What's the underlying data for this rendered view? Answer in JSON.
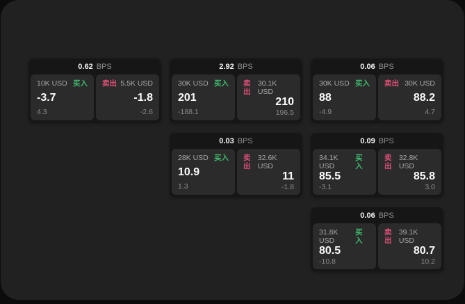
{
  "labels": {
    "bps_unit": "BPS",
    "buy_tag": "买入",
    "sell_tag": "卖出"
  },
  "colors": {
    "buy": "#3fbb6e",
    "sell": "#dd4f76",
    "window_bg": "#212121",
    "card_bg": "#161616",
    "panel_bg": "#2b2b2b"
  },
  "cards": [
    {
      "row": 0,
      "col": 0,
      "bps": "0.62",
      "buy": {
        "size": "10K USD",
        "price": "-3.7",
        "delta": "4.3"
      },
      "sell": {
        "size": "5.5K USD",
        "price": "-1.8",
        "delta": "-2.6"
      }
    },
    {
      "row": 0,
      "col": 1,
      "bps": "2.92",
      "buy": {
        "size": "30K USD",
        "price": "201",
        "delta": "-188.1"
      },
      "sell": {
        "size": "30.1K USD",
        "price": "210",
        "delta": "196.5"
      }
    },
    {
      "row": 0,
      "col": 2,
      "bps": "0.06",
      "buy": {
        "size": "30K USD",
        "price": "88",
        "delta": "-4.9"
      },
      "sell": {
        "size": "30K USD",
        "price": "88.2",
        "delta": "4.7"
      }
    },
    {
      "row": 1,
      "col": 1,
      "bps": "0.03",
      "buy": {
        "size": "28K USD",
        "price": "10.9",
        "delta": "1.3"
      },
      "sell": {
        "size": "32.6K USD",
        "price": "11",
        "delta": "-1.8"
      }
    },
    {
      "row": 1,
      "col": 2,
      "bps": "0.09",
      "buy": {
        "size": "34.1K USD",
        "price": "85.5",
        "delta": "-3.1"
      },
      "sell": {
        "size": "32.8K USD",
        "price": "85.8",
        "delta": "3.0"
      }
    },
    {
      "row": 2,
      "col": 2,
      "bps": "0.06",
      "buy": {
        "size": "31.8K USD",
        "price": "80.5",
        "delta": "-10.8"
      },
      "sell": {
        "size": "39.1K USD",
        "price": "80.7",
        "delta": "10.2"
      }
    }
  ]
}
